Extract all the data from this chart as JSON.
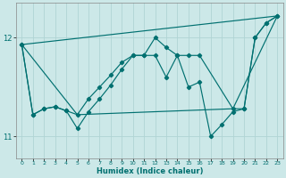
{
  "xlabel": "Humidex (Indice chaleur)",
  "background_color": "#cce8e8",
  "grid_color": "#b0d4d4",
  "line_color": "#007070",
  "xlim": [
    -0.5,
    23.5
  ],
  "ylim": [
    10.78,
    12.35
  ],
  "yticks": [
    11,
    12
  ],
  "xticks": [
    0,
    1,
    2,
    3,
    4,
    5,
    6,
    7,
    8,
    9,
    10,
    11,
    12,
    13,
    14,
    15,
    16,
    17,
    18,
    19,
    20,
    21,
    22,
    23
  ],
  "line1_x": [
    0,
    1,
    2,
    3,
    4,
    5,
    6,
    7,
    8,
    9,
    10,
    11,
    12,
    13,
    14,
    15,
    16,
    19,
    20,
    21,
    22,
    23
  ],
  "line1_y": [
    11.93,
    11.22,
    11.28,
    11.3,
    11.26,
    11.22,
    11.38,
    11.5,
    11.62,
    11.75,
    11.82,
    11.82,
    12.0,
    11.9,
    11.82,
    11.82,
    11.82,
    11.28,
    11.28,
    12.0,
    12.15,
    12.22
  ],
  "line2_x": [
    0,
    1,
    2,
    3,
    4,
    5,
    6,
    7,
    8,
    9,
    10,
    11,
    12,
    13,
    14,
    15,
    16,
    17,
    18,
    19,
    20,
    21,
    22,
    23
  ],
  "line2_y": [
    11.93,
    11.22,
    11.28,
    11.3,
    11.26,
    11.08,
    11.25,
    11.38,
    11.52,
    11.68,
    11.82,
    11.82,
    11.82,
    11.6,
    11.82,
    11.5,
    11.55,
    11.0,
    11.12,
    11.25,
    11.28,
    12.0,
    12.15,
    12.22
  ],
  "line3_x": [
    0,
    23
  ],
  "line3_y": [
    11.93,
    12.22
  ],
  "line4_x": [
    0,
    5,
    19,
    23
  ],
  "line4_y": [
    11.93,
    11.22,
    11.28,
    12.22
  ],
  "marker": "D",
  "markersize": 2.2,
  "linewidth": 0.85
}
